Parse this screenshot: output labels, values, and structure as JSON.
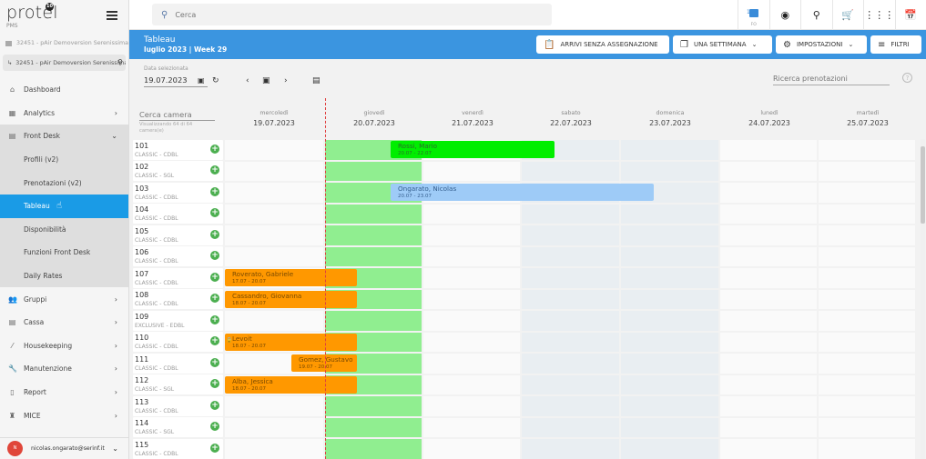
{
  "app": {
    "logo": "protel",
    "logo_badge": "10",
    "logo_sub": "PMS"
  },
  "property": {
    "label": "32451 - pAir Demoversion Serenissima",
    "selected": "32451 - pAir Demoversion Serenissima"
  },
  "sidebar": {
    "items": [
      {
        "label": "Dashboard",
        "icon": "home-icon"
      },
      {
        "label": "Analytics",
        "icon": "analytics-icon"
      },
      {
        "label": "Front Desk",
        "icon": "front-desk-icon"
      },
      {
        "label": "Gruppi",
        "icon": "groups-icon"
      },
      {
        "label": "Cassa",
        "icon": "cash-icon"
      },
      {
        "label": "Housekeeping",
        "icon": "broom-icon"
      },
      {
        "label": "Manutenzione",
        "icon": "wrench-icon"
      },
      {
        "label": "Report",
        "icon": "report-icon"
      },
      {
        "label": "MICE",
        "icon": "mice-icon"
      }
    ],
    "frontdesk_sub": [
      {
        "label": "Profili (v2)"
      },
      {
        "label": "Prenotazioni (v2)"
      },
      {
        "label": "Tableau"
      },
      {
        "label": "Disponibilità"
      },
      {
        "label": "Funzioni Front Desk"
      },
      {
        "label": "Daily Rates"
      }
    ],
    "user": {
      "initial": "N",
      "email": "nicolas.ongarato@serinf.it"
    }
  },
  "topbar": {
    "search_placeholder": "Cerca",
    "fo_count": "1",
    "fo_label": "FO"
  },
  "header": {
    "title": "Tableau",
    "subtitle": "luglio 2023 | Week 29",
    "buttons": {
      "arrivi": "ARRIVI SENZA ASSEGNAZIONE",
      "settimana": "UNA SETTIMANA",
      "impostazioni": "IMPOSTAZIONI",
      "filtri": "FILTRI"
    }
  },
  "controls": {
    "date_label": "Data selezionata",
    "date_value": "19.07.2023",
    "search_bookings_placeholder": "Ricerca prenotazioni"
  },
  "grid": {
    "room_search_placeholder": "Cerca camera",
    "showing": "Visualizzando 64 di 64 camera(e)",
    "days": [
      {
        "name": "mercoledì",
        "date": "19.07.2023"
      },
      {
        "name": "giovedì",
        "date": "20.07.2023"
      },
      {
        "name": "venerdì",
        "date": "21.07.2023"
      },
      {
        "name": "sabato",
        "date": "22.07.2023"
      },
      {
        "name": "domenica",
        "date": "23.07.2023"
      },
      {
        "name": "lunedì",
        "date": "24.07.2023"
      },
      {
        "name": "martedì",
        "date": "25.07.2023"
      }
    ],
    "rooms": [
      {
        "num": "101",
        "type": "CLASSIC - CDBL"
      },
      {
        "num": "102",
        "type": "CLASSIC - SGL"
      },
      {
        "num": "103",
        "type": "CLASSIC - CDBL"
      },
      {
        "num": "104",
        "type": "CLASSIC - CDBL"
      },
      {
        "num": "105",
        "type": "CLASSIC - CDBL"
      },
      {
        "num": "106",
        "type": "CLASSIC - CDBL"
      },
      {
        "num": "107",
        "type": "CLASSIC - CDBL"
      },
      {
        "num": "108",
        "type": "CLASSIC - CDBL"
      },
      {
        "num": "109",
        "type": "EXCLUSIVE - EDBL"
      },
      {
        "num": "110",
        "type": "CLASSIC - CDBL"
      },
      {
        "num": "111",
        "type": "CLASSIC - CDBL"
      },
      {
        "num": "112",
        "type": "CLASSIC - SGL"
      },
      {
        "num": "113",
        "type": "CLASSIC - CDBL"
      },
      {
        "num": "114",
        "type": "CLASSIC - SGL"
      },
      {
        "num": "115",
        "type": "CLASSIC - CDBL"
      }
    ],
    "bookings": [
      {
        "name": "Rossi, Mario",
        "dates": "20.07 - 22.07",
        "color": "green"
      },
      {
        "name": "Ongarato, Nicolas",
        "dates": "20.07 - 23.07",
        "color": "blue"
      },
      {
        "name": "Roverato, Gabriele",
        "dates": "17.07 - 20.07",
        "color": "orange"
      },
      {
        "name": "Cassandro, Giovanna",
        "dates": "18.07 - 20.07",
        "color": "orange"
      },
      {
        "name": "Levoit",
        "dates": "18.07 - 20.07",
        "color": "orange"
      },
      {
        "name": "Gomez, Gustavo",
        "dates": "19.07 - 20.07",
        "color": "orange"
      },
      {
        "name": "Alba, Jessica",
        "dates": "18.07 - 20.07",
        "color": "orange"
      }
    ]
  },
  "colors": {
    "accent": "#3b95e0",
    "active_nav": "#1a9be6",
    "today_column": "#90ee90",
    "booking_orange": "#ff9800",
    "booking_green": "#00ee00",
    "booking_blue": "#9ecbf7",
    "weekend": "#e9eef2"
  }
}
